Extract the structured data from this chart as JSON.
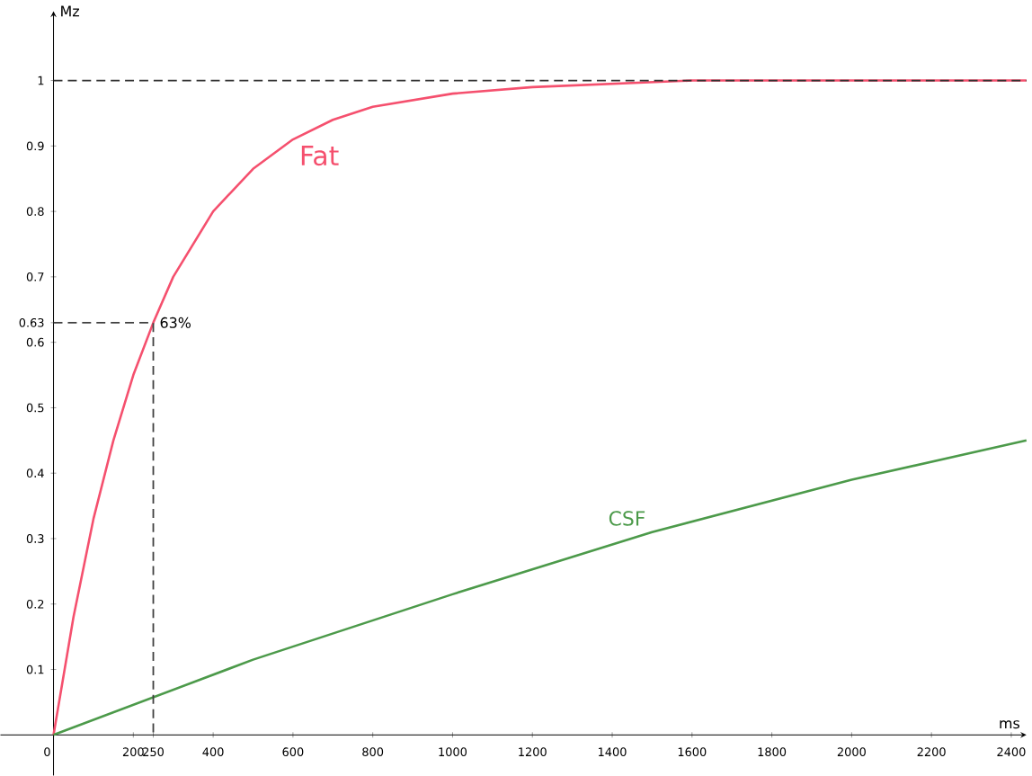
{
  "chart_data": {
    "type": "line",
    "xlabel": "ms",
    "ylabel": "Mz",
    "xlim": [
      -133,
      2438
    ],
    "ylim": [
      -0.062,
      1.106
    ],
    "xticks": [
      0,
      200,
      {
        "value": 250,
        "label": "250"
      },
      400,
      600,
      800,
      1000,
      1200,
      1400,
      1600,
      1800,
      2000,
      2200,
      2400
    ],
    "yticks": [
      0.1,
      0.2,
      0.3,
      0.4,
      0.5,
      0.6,
      {
        "value": 0.63,
        "label": "0.63"
      },
      0.7,
      0.8,
      0.9,
      1
    ],
    "grid": false,
    "legend": false,
    "marker": "none",
    "line_style": "solid",
    "series": [
      {
        "name": "Fat",
        "color": "#f5506e",
        "x": [
          0,
          50,
          100,
          150,
          200,
          250,
          300,
          400,
          500,
          600,
          700,
          800,
          1000,
          1200,
          1400,
          1600,
          2000,
          2438
        ],
        "values": [
          0,
          0.18,
          0.33,
          0.45,
          0.55,
          0.63,
          0.7,
          0.8,
          0.865,
          0.91,
          0.94,
          0.96,
          0.98,
          0.99,
          0.995,
          1,
          1,
          1
        ]
      },
      {
        "name": "CSF",
        "color": "#4c9a4a",
        "x": [
          0,
          500,
          1000,
          1500,
          2000,
          2438
        ],
        "values": [
          0,
          0.115,
          0.215,
          0.31,
          0.39,
          0.45
        ]
      },
      {
        "color": "#404040",
        "line_style": "dashed",
        "x": [
          0,
          250,
          250
        ],
        "values": [
          0.63,
          0.63,
          0
        ]
      }
    ],
    "ref_lines": [
      {
        "axis": "y",
        "value": 1,
        "color": "#333333",
        "line_style": "dashed"
      }
    ],
    "annotations": [
      {
        "text": "63%",
        "x": 250,
        "y": 0.63
      }
    ]
  }
}
